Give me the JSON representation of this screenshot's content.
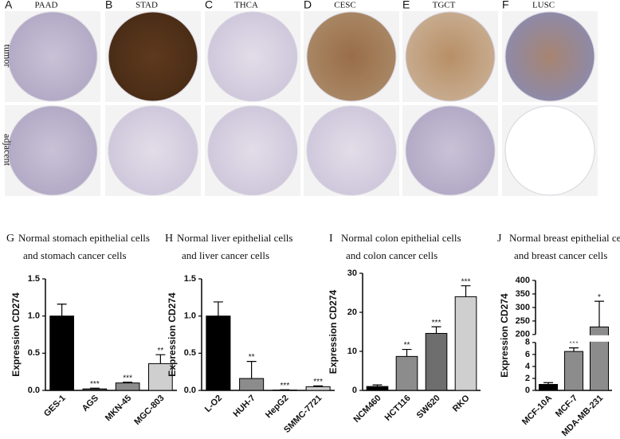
{
  "ihc": {
    "columns": [
      {
        "letter": "A",
        "tissue": "PAAD"
      },
      {
        "letter": "B",
        "tissue": "STAD"
      },
      {
        "letter": "C",
        "tissue": "THCA"
      },
      {
        "letter": "D",
        "tissue": "CESC"
      },
      {
        "letter": "E",
        "tissue": "TGCT"
      },
      {
        "letter": "F",
        "tissue": "LUSC"
      }
    ],
    "rows": [
      "tumor",
      "adjacent"
    ]
  },
  "chart_data": [
    {
      "type": "bar",
      "panel": "G",
      "title": [
        "Normal stomach epithelial cells",
        "and stomach cancer cells"
      ],
      "y_label": "Expression CD274",
      "categories": [
        "GES-1",
        "AGS",
        "MKN-45",
        "MGC-803"
      ],
      "values": [
        1.0,
        0.02,
        0.1,
        0.36
      ],
      "errors": [
        0.16,
        0.01,
        0.01,
        0.12
      ],
      "annotations": [
        null,
        "***",
        "***",
        "**"
      ],
      "colors": [
        "#000000",
        "#4d4d4d",
        "#8c8c8c",
        "#cfcfcf"
      ],
      "ylim": [
        0,
        1.5
      ],
      "yticks": [
        {
          "value": 0,
          "label": "0.0"
        },
        {
          "value": 0.5,
          "label": "0.5"
        },
        {
          "value": 1.0,
          "label": "1.0"
        },
        {
          "value": 1.5,
          "label": "1.5"
        }
      ]
    },
    {
      "type": "bar",
      "panel": "H",
      "title": [
        "Normal liver epithelial cells",
        "and liver cancer cells"
      ],
      "y_label": "Expression CD274",
      "categories": [
        "L-O2",
        "HUH-7",
        "HepG2",
        "SMMC-7721"
      ],
      "values": [
        1.0,
        0.16,
        0.005,
        0.05
      ],
      "errors": [
        0.19,
        0.23,
        0.003,
        0.01
      ],
      "annotations": [
        null,
        "**",
        "***",
        "***"
      ],
      "colors": [
        "#000000",
        "#8c8c8c",
        "#8c8c8c",
        "#cfcfcf"
      ],
      "ylim": [
        0,
        1.5
      ],
      "yticks": [
        {
          "value": 0,
          "label": "0.0"
        },
        {
          "value": 0.5,
          "label": "0.5"
        },
        {
          "value": 1.0,
          "label": "1.0"
        },
        {
          "value": 1.5,
          "label": "1.5"
        }
      ]
    },
    {
      "type": "bar",
      "panel": "I",
      "title": [
        "Normal colon epithelial cells",
        "and colon cancer cells"
      ],
      "y_label": "Expression CD274",
      "categories": [
        "NCM460",
        "HCT116",
        "SW620",
        "RKO"
      ],
      "values": [
        1,
        8.7,
        14.6,
        24
      ],
      "errors": [
        0.4,
        1.8,
        1.7,
        2.8
      ],
      "annotations": [
        null,
        "**",
        "***",
        "***"
      ],
      "colors": [
        "#000000",
        "#8c8c8c",
        "#6e6e6e",
        "#cfcfcf"
      ],
      "ylim": [
        0,
        30
      ],
      "yticks": [
        0,
        10,
        20,
        30
      ]
    },
    {
      "type": "bar",
      "panel": "J",
      "title": [
        "Normal breast epithelial cells",
        "and breast cancer cells"
      ],
      "y_label": "Expression CD274",
      "categories": [
        "MCF-10A",
        "MCF-7",
        "MDA-MB-231"
      ],
      "values": [
        1,
        6.5,
        228
      ],
      "errors": [
        0.3,
        0.6,
        95
      ],
      "annotations": [
        null,
        "***",
        "*"
      ],
      "colors": [
        "#000000",
        "#8c8c8c",
        "#8c8c8c"
      ],
      "ylim": [
        0,
        400
      ],
      "axis_break": [
        8,
        200
      ],
      "yticks": [
        0,
        2,
        4,
        6,
        8,
        200,
        250,
        300,
        350,
        400
      ]
    }
  ]
}
